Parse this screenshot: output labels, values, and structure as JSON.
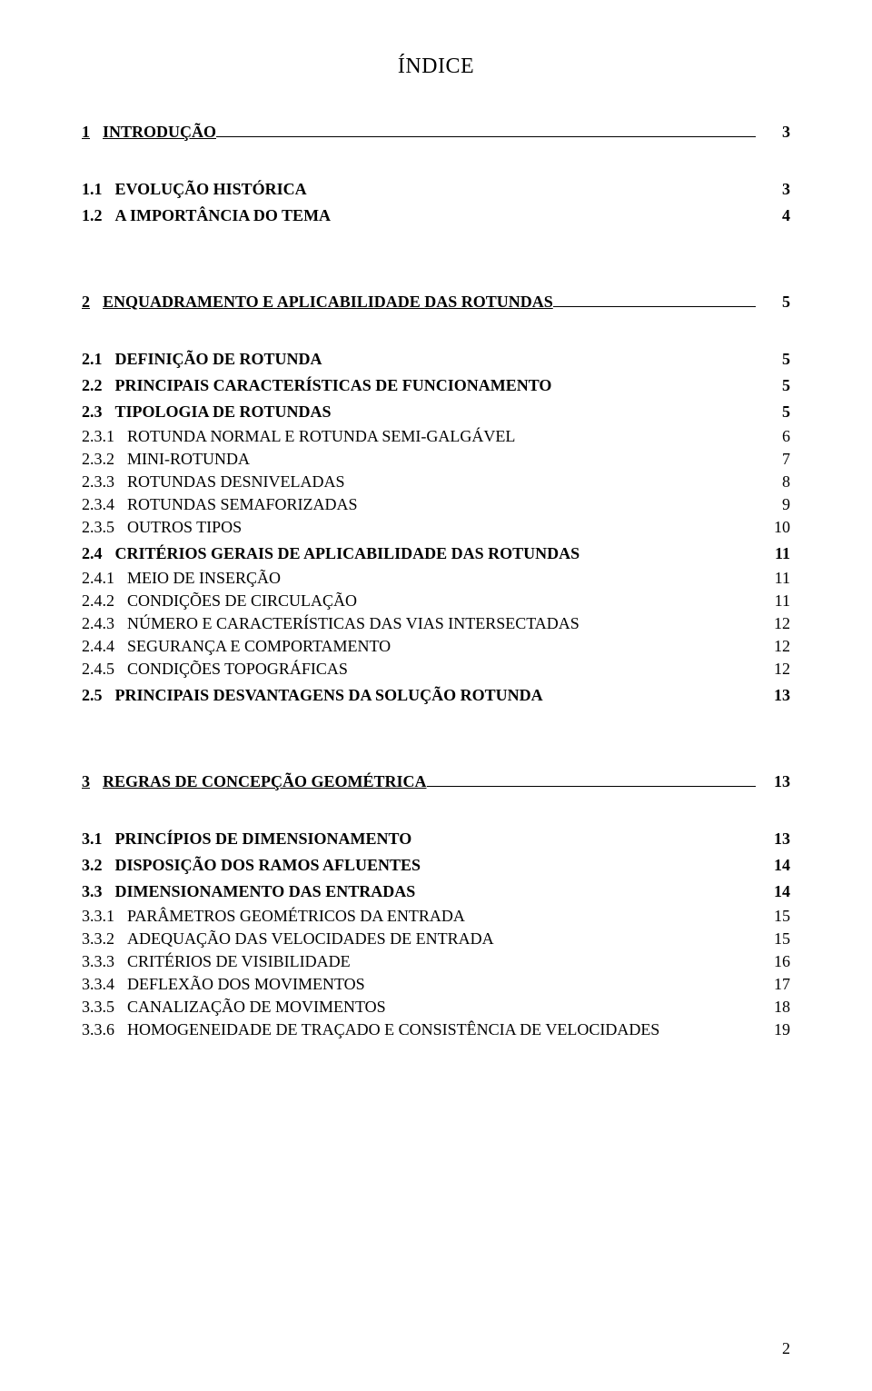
{
  "title": "ÍNDICE",
  "pageNumber": "2",
  "toc": [
    {
      "level": 1,
      "num": "1",
      "text": "INTRODUÇÃO",
      "page": "3",
      "underlined": true,
      "smallcaps": false
    },
    {
      "level": 2,
      "num": "1.1",
      "text": "EVOLUÇÃO HISTÓRICA",
      "page": "3",
      "underlined": false,
      "smallcaps": true
    },
    {
      "level": 2,
      "num": "1.2",
      "text": "A IMPORTÂNCIA DO TEMA",
      "page": "4",
      "underlined": false,
      "smallcaps": true
    },
    {
      "level": 1,
      "num": "2",
      "text": "ENQUADRAMENTO E APLICABILIDADE DAS ROTUNDAS",
      "page": "5",
      "underlined": true,
      "smallcaps": false
    },
    {
      "level": 2,
      "num": "2.1",
      "text": "DEFINIÇÃO DE ROTUNDA",
      "page": "5",
      "underlined": false,
      "smallcaps": true
    },
    {
      "level": 2,
      "num": "2.2",
      "text": "PRINCIPAIS CARACTERÍSTICAS DE FUNCIONAMENTO",
      "page": "5",
      "underlined": false,
      "smallcaps": true
    },
    {
      "level": 2,
      "num": "2.3",
      "text": "TIPOLOGIA DE ROTUNDAS",
      "page": "5",
      "underlined": false,
      "smallcaps": true
    },
    {
      "level": 3,
      "num": "2.3.1",
      "text": "ROTUNDA NORMAL E ROTUNDA SEMI-GALGÁVEL",
      "page": "6",
      "underlined": false,
      "smallcaps": true
    },
    {
      "level": 3,
      "num": "2.3.2",
      "text": "MINI-ROTUNDA",
      "page": "7",
      "underlined": false,
      "smallcaps": true
    },
    {
      "level": 3,
      "num": "2.3.3",
      "text": "ROTUNDAS DESNIVELADAS",
      "page": "8",
      "underlined": false,
      "smallcaps": true
    },
    {
      "level": 3,
      "num": "2.3.4",
      "text": "ROTUNDAS SEMAFORIZADAS",
      "page": "9",
      "underlined": false,
      "smallcaps": true
    },
    {
      "level": 3,
      "num": "2.3.5",
      "text": "OUTROS TIPOS",
      "page": "10",
      "underlined": false,
      "smallcaps": true
    },
    {
      "level": 2,
      "num": "2.4",
      "text": "CRITÉRIOS GERAIS DE APLICABILIDADE DAS ROTUNDAS",
      "page": "11",
      "underlined": false,
      "smallcaps": true
    },
    {
      "level": 3,
      "num": "2.4.1",
      "text": "MEIO DE INSERÇÃO",
      "page": "11",
      "underlined": false,
      "smallcaps": true
    },
    {
      "level": 3,
      "num": "2.4.2",
      "text": "CONDIÇÕES DE CIRCULAÇÃO",
      "page": "11",
      "underlined": false,
      "smallcaps": true
    },
    {
      "level": 3,
      "num": "2.4.3",
      "text": "NÚMERO E CARACTERÍSTICAS DAS VIAS INTERSECTADAS",
      "page": "12",
      "underlined": false,
      "smallcaps": true
    },
    {
      "level": 3,
      "num": "2.4.4",
      "text": "SEGURANÇA E COMPORTAMENTO",
      "page": "12",
      "underlined": false,
      "smallcaps": true
    },
    {
      "level": 3,
      "num": "2.4.5",
      "text": "CONDIÇÕES TOPOGRÁFICAS",
      "page": "12",
      "underlined": false,
      "smallcaps": true
    },
    {
      "level": 2,
      "num": "2.5",
      "text": "PRINCIPAIS DESVANTAGENS DA SOLUÇÃO ROTUNDA",
      "page": "13",
      "underlined": false,
      "smallcaps": true
    },
    {
      "level": 1,
      "num": "3",
      "text": "REGRAS DE CONCEPÇÃO GEOMÉTRICA",
      "page": "13",
      "underlined": true,
      "smallcaps": false
    },
    {
      "level": 2,
      "num": "3.1",
      "text": "PRINCÍPIOS DE DIMENSIONAMENTO",
      "page": "13",
      "underlined": false,
      "smallcaps": true
    },
    {
      "level": 2,
      "num": "3.2",
      "text": "DISPOSIÇÃO DOS RAMOS AFLUENTES",
      "page": "14",
      "underlined": false,
      "smallcaps": true
    },
    {
      "level": 2,
      "num": "3.3",
      "text": "DIMENSIONAMENTO DAS ENTRADAS",
      "page": "14",
      "underlined": false,
      "smallcaps": true
    },
    {
      "level": 3,
      "num": "3.3.1",
      "text": "PARÂMETROS GEOMÉTRICOS DA ENTRADA",
      "page": "15",
      "underlined": false,
      "smallcaps": true
    },
    {
      "level": 3,
      "num": "3.3.2",
      "text": "ADEQUAÇÃO DAS VELOCIDADES DE ENTRADA",
      "page": "15",
      "underlined": false,
      "smallcaps": true
    },
    {
      "level": 3,
      "num": "3.3.3",
      "text": "CRITÉRIOS DE VISIBILIDADE",
      "page": "16",
      "underlined": false,
      "smallcaps": true
    },
    {
      "level": 3,
      "num": "3.3.4",
      "text": "DEFLEXÃO DOS MOVIMENTOS",
      "page": "17",
      "underlined": false,
      "smallcaps": true
    },
    {
      "level": 3,
      "num": "3.3.5",
      "text": "CANALIZAÇÃO DE MOVIMENTOS",
      "page": "18",
      "underlined": false,
      "smallcaps": true
    },
    {
      "level": 3,
      "num": "3.3.6",
      "text": "HOMOGENEIDADE DE TRAÇADO E CONSISTÊNCIA DE VELOCIDADES",
      "page": "19",
      "underlined": false,
      "smallcaps": true
    }
  ]
}
